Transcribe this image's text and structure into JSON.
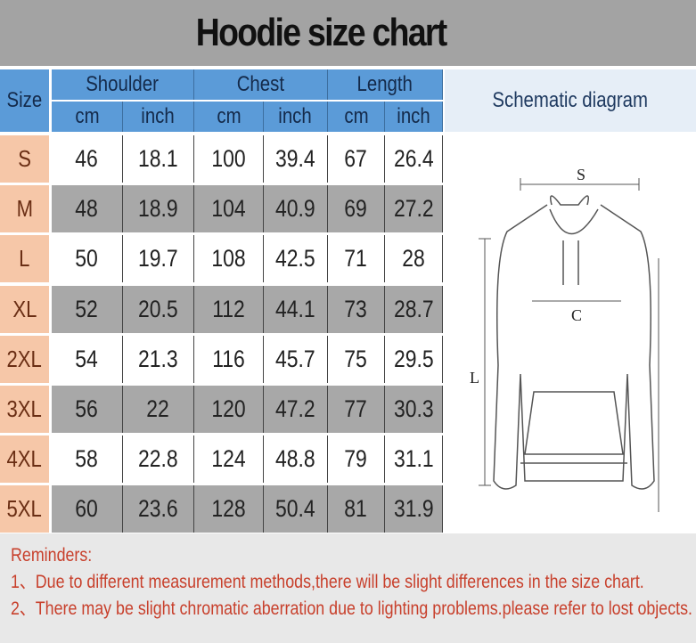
{
  "title": "Hoodie size chart",
  "header": {
    "size": "Size",
    "groups": [
      "Shoulder",
      "Chest",
      "Length"
    ],
    "units": [
      "cm",
      "inch",
      "cm",
      "inch",
      "cm",
      "inch"
    ],
    "schematic": "Schematic diagram"
  },
  "rows": [
    {
      "size": "S",
      "values": [
        "46",
        "18.1",
        "100",
        "39.4",
        "67",
        "26.4"
      ]
    },
    {
      "size": "M",
      "values": [
        "48",
        "18.9",
        "104",
        "40.9",
        "69",
        "27.2"
      ]
    },
    {
      "size": "L",
      "values": [
        "50",
        "19.7",
        "108",
        "42.5",
        "71",
        "28"
      ]
    },
    {
      "size": "XL",
      "values": [
        "52",
        "20.5",
        "112",
        "44.1",
        "73",
        "28.7"
      ]
    },
    {
      "size": "2XL",
      "values": [
        "54",
        "21.3",
        "116",
        "45.7",
        "75",
        "29.5"
      ]
    },
    {
      "size": "3XL",
      "values": [
        "56",
        "22",
        "120",
        "47.2",
        "77",
        "30.3"
      ]
    },
    {
      "size": "4XL",
      "values": [
        "58",
        "22.8",
        "124",
        "48.8",
        "79",
        "31.1"
      ]
    },
    {
      "size": "5XL",
      "values": [
        "60",
        "23.6",
        "128",
        "50.4",
        "81",
        "31.9"
      ]
    }
  ],
  "diagram": {
    "s": "S",
    "c": "C",
    "l": "L"
  },
  "reminders": {
    "heading": "Reminders:",
    "items": [
      "1、Due to different measurement methods,there will be slight differences in the size chart.",
      "2、There may be slight chromatic aberration due to lighting problems.please refer to lost objects."
    ]
  },
  "colors": {
    "header": "#5b9bd8",
    "size_cell": "#f6c7a8",
    "row_alt": "#a8a8a8",
    "reminder_text": "#c8402c"
  }
}
